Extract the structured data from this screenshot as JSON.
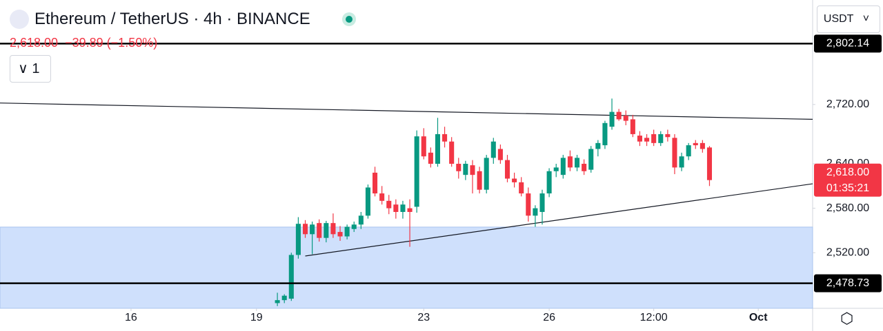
{
  "chart_data": {
    "type": "candlestick",
    "title": "Ethereum / TetherUS · 4h · BINANCE",
    "last_price": "2,618.00",
    "change": "−39.89",
    "change_pct": "(−1.50%)",
    "indicator_count": "1",
    "currency": "USDT",
    "last_price_label": {
      "value": 2618,
      "label": "2,618.00"
    },
    "countdown": "01:35:21",
    "up_color": "#089981",
    "down_color": "#f23645",
    "candles": [
      [
        2452,
        2466,
        2448,
        2456
      ],
      [
        2456,
        2464,
        2452,
        2462
      ],
      [
        2458,
        2520,
        2455,
        2517
      ],
      [
        2517,
        2568,
        2512,
        2559
      ],
      [
        2559,
        2564,
        2540,
        2545
      ],
      [
        2545,
        2562,
        2518,
        2558
      ],
      [
        2560,
        2565,
        2535,
        2540
      ],
      [
        2540,
        2563,
        2534,
        2560
      ],
      [
        2560,
        2573,
        2540,
        2545
      ],
      [
        2548,
        2556,
        2536,
        2542
      ],
      [
        2542,
        2558,
        2538,
        2555
      ],
      [
        2552,
        2562,
        2548,
        2558
      ],
      [
        2558,
        2575,
        2552,
        2570
      ],
      [
        2570,
        2612,
        2566,
        2608
      ],
      [
        2628,
        2636,
        2596,
        2600
      ],
      [
        2600,
        2610,
        2585,
        2590
      ],
      [
        2590,
        2598,
        2572,
        2580
      ],
      [
        2585,
        2592,
        2566,
        2575
      ],
      [
        2575,
        2590,
        2566,
        2585
      ],
      [
        2580,
        2592,
        2528,
        2575
      ],
      [
        2582,
        2685,
        2574,
        2677
      ],
      [
        2677,
        2688,
        2646,
        2650
      ],
      [
        2655,
        2662,
        2635,
        2640
      ],
      [
        2640,
        2702,
        2636,
        2680
      ],
      [
        2680,
        2690,
        2662,
        2670
      ],
      [
        2670,
        2676,
        2636,
        2640
      ],
      [
        2640,
        2648,
        2620,
        2630
      ],
      [
        2625,
        2644,
        2618,
        2640
      ],
      [
        2638,
        2645,
        2600,
        2625
      ],
      [
        2630,
        2636,
        2600,
        2605
      ],
      [
        2605,
        2652,
        2600,
        2648
      ],
      [
        2648,
        2675,
        2640,
        2670
      ],
      [
        2660,
        2666,
        2640,
        2645
      ],
      [
        2645,
        2652,
        2615,
        2620
      ],
      [
        2620,
        2628,
        2608,
        2615
      ],
      [
        2615,
        2622,
        2596,
        2600
      ],
      [
        2600,
        2608,
        2562,
        2570
      ],
      [
        2570,
        2584,
        2555,
        2580
      ],
      [
        2575,
        2605,
        2558,
        2600
      ],
      [
        2600,
        2634,
        2595,
        2630
      ],
      [
        2630,
        2640,
        2622,
        2635
      ],
      [
        2625,
        2652,
        2620,
        2648
      ],
      [
        2650,
        2658,
        2630,
        2635
      ],
      [
        2635,
        2652,
        2630,
        2648
      ],
      [
        2640,
        2646,
        2625,
        2630
      ],
      [
        2632,
        2664,
        2628,
        2660
      ],
      [
        2660,
        2672,
        2650,
        2668
      ],
      [
        2665,
        2698,
        2660,
        2695
      ],
      [
        2690,
        2728,
        2686,
        2710
      ],
      [
        2710,
        2714,
        2698,
        2700
      ],
      [
        2705,
        2712,
        2692,
        2698
      ],
      [
        2700,
        2706,
        2676,
        2680
      ],
      [
        2678,
        2684,
        2664,
        2670
      ],
      [
        2675,
        2680,
        2664,
        2670
      ],
      [
        2680,
        2686,
        2664,
        2668
      ],
      [
        2668,
        2684,
        2664,
        2680
      ],
      [
        2680,
        2686,
        2670,
        2676
      ],
      [
        2675,
        2680,
        2626,
        2635
      ],
      [
        2635,
        2655,
        2630,
        2650
      ],
      [
        2650,
        2668,
        2645,
        2665
      ],
      [
        2668,
        2672,
        2660,
        2665
      ],
      [
        2668,
        2672,
        2655,
        2660
      ],
      [
        2662,
        2664,
        2610,
        2618
      ]
    ],
    "xlim": [
      -39.8,
      76.8
    ],
    "ylim": [
      2445,
      2861
    ],
    "xticks": [
      {
        "value": -21,
        "label": "16"
      },
      {
        "value": -3,
        "label": "19"
      },
      {
        "value": 21,
        "label": "23"
      },
      {
        "value": 39,
        "label": "26"
      },
      {
        "value": 54,
        "label": "12:00"
      },
      {
        "value": 69,
        "label": "Oct"
      }
    ],
    "yticks": [
      {
        "value": 2520,
        "label": "2,520.00"
      },
      {
        "value": 2580,
        "label": "2,580.00"
      },
      {
        "value": 2640,
        "label": "2,640.00"
      },
      {
        "value": 2720,
        "label": "2,720.00"
      }
    ],
    "hlines": [
      {
        "value": 2802.14,
        "label": "2,802.14"
      },
      {
        "value": 2478.73,
        "label": "2,478.73"
      }
    ],
    "trendlines": [
      {
        "x": [
          -39.8,
          76.8
        ],
        "y": [
          2722,
          2700
        ]
      },
      {
        "x": [
          4,
          76.8
        ],
        "y": [
          2515.6,
          2613
        ]
      }
    ],
    "zone": [
      2445,
      2554.6
    ]
  }
}
